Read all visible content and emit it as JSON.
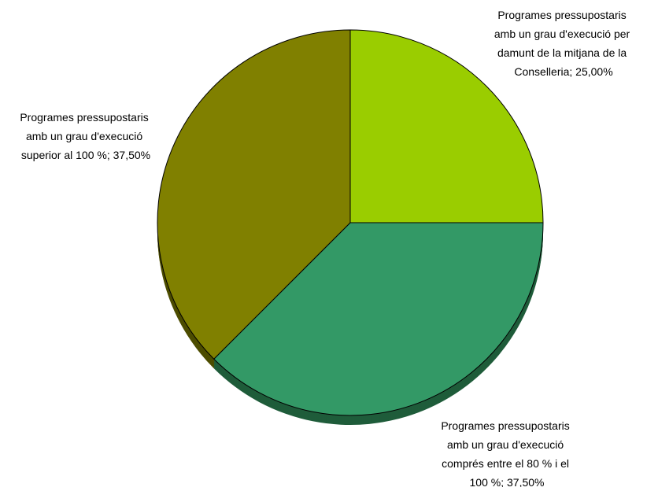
{
  "chart_data": {
    "type": "pie",
    "title": "",
    "slices": [
      {
        "label_lines": [
          "Programes pressupostaris",
          "amb un grau d'execució per",
          "damunt de la mitjana de la",
          "Conselleria; 25,00%"
        ],
        "value": 25.0,
        "color": "#9ACD00"
      },
      {
        "label_lines": [
          "Programes pressupostaris",
          "amb un grau d'execució",
          "comprés entre el 80 % i el",
          "100 %; 37,50%"
        ],
        "value": 37.5,
        "color": "#339966"
      },
      {
        "label_lines": [
          "Programes pressupostaris",
          "amb un grau d'execució",
          "superior al 100 %; 37,50%"
        ],
        "value": 37.5,
        "color": "#808000"
      }
    ],
    "shadow_colors": [
      "#6B8F00",
      "#1F5C3A",
      "#4D4D00"
    ]
  }
}
